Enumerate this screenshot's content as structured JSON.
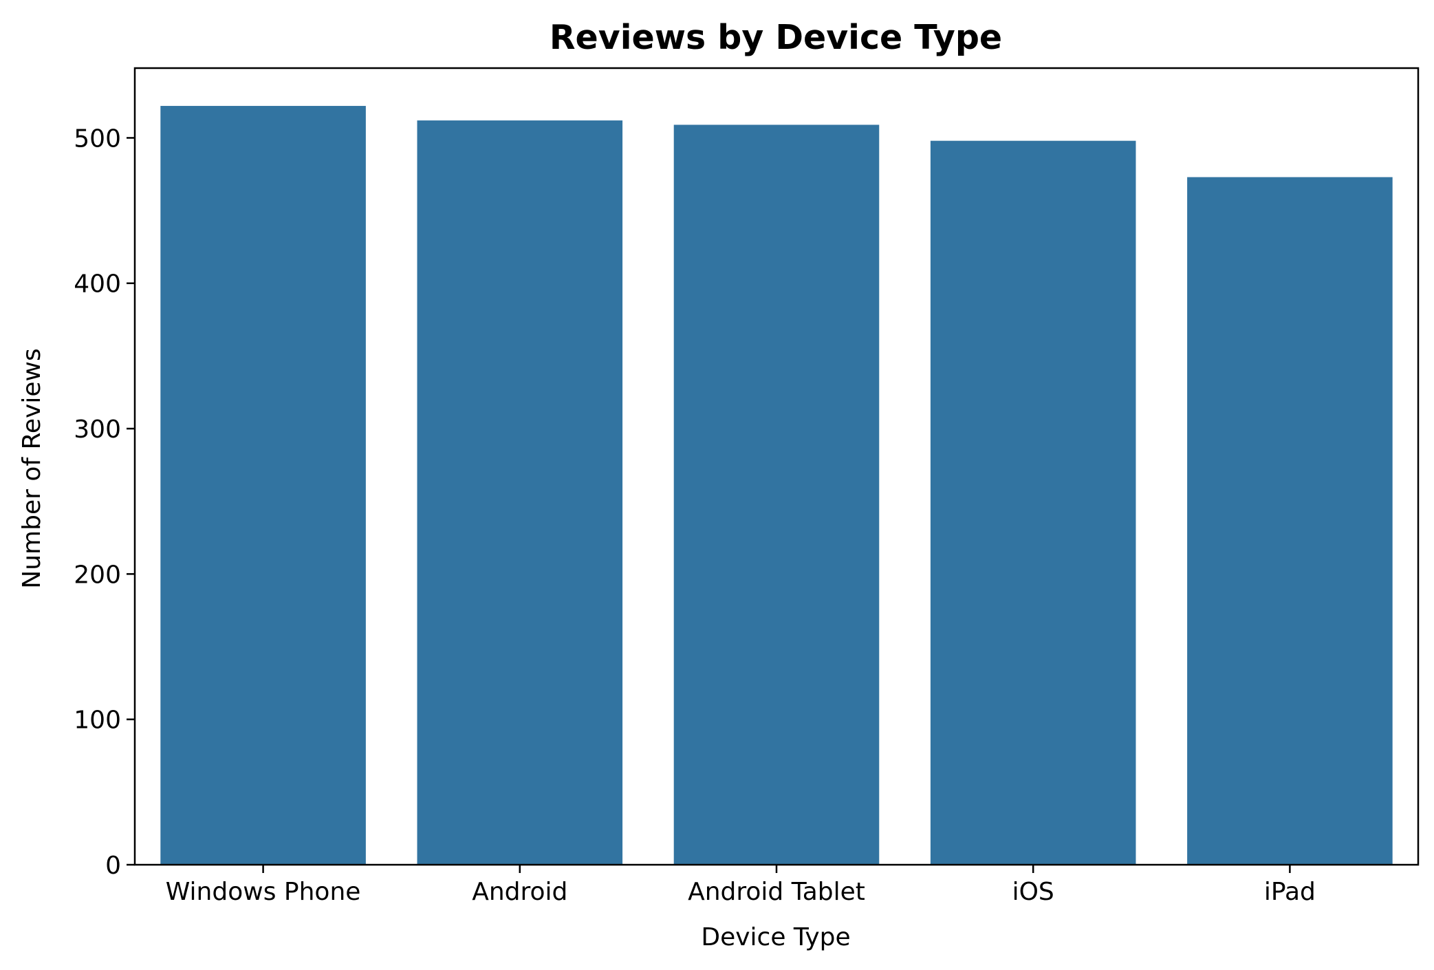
{
  "chart_data": {
    "type": "bar",
    "title": "Reviews by Device Type",
    "xlabel": "Device Type",
    "ylabel": "Number of Reviews",
    "categories": [
      "Windows Phone",
      "Android",
      "Android Tablet",
      "iOS",
      "iPad"
    ],
    "values": [
      522,
      512,
      509,
      498,
      473
    ],
    "ylim": [
      0,
      548
    ],
    "yticks": [
      0,
      100,
      200,
      300,
      400,
      500
    ],
    "grid": false,
    "bar_color": "#3274a1"
  }
}
